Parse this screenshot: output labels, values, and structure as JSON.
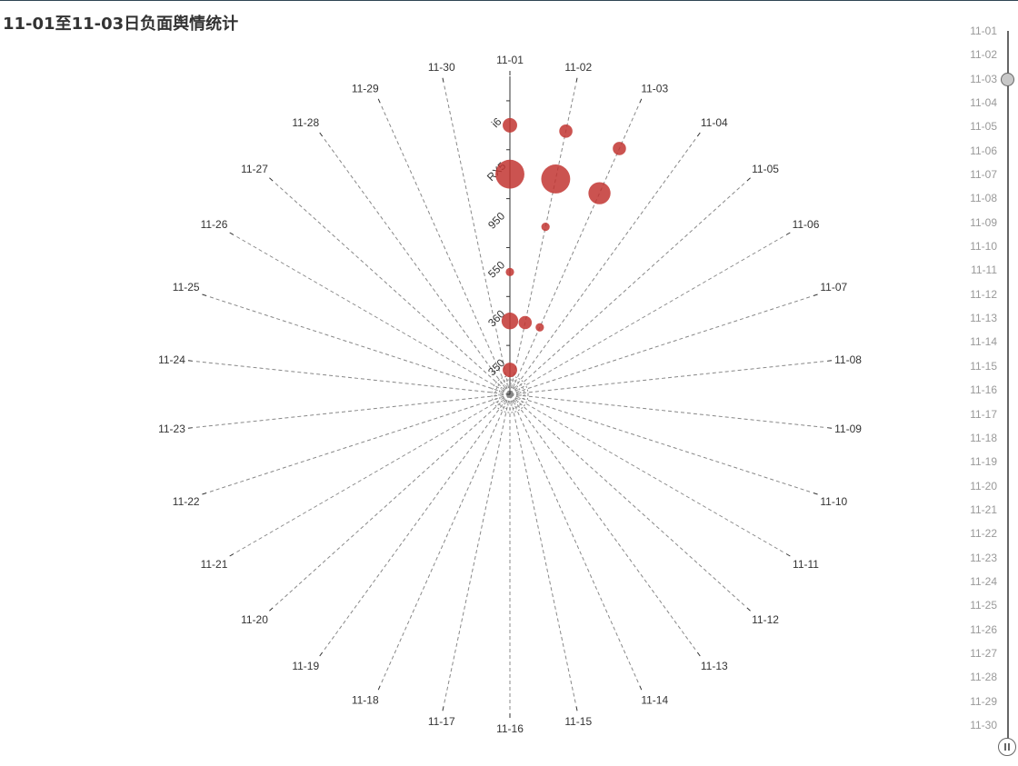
{
  "title": "11-01至11-03日负面舆情统计",
  "chart_data": {
    "type": "scatter",
    "coordinate": "polar",
    "angle_axis": {
      "categories": [
        "11-01",
        "11-02",
        "11-03",
        "11-04",
        "11-05",
        "11-06",
        "11-07",
        "11-08",
        "11-09",
        "11-10",
        "11-11",
        "11-12",
        "11-13",
        "11-14",
        "11-15",
        "11-16",
        "11-17",
        "11-18",
        "11-19",
        "11-20",
        "11-21",
        "11-22",
        "11-23",
        "11-24",
        "11-25",
        "11-26",
        "11-27",
        "11-28",
        "11-29",
        "11-30"
      ]
    },
    "radius_axis": {
      "type": "category",
      "categories": [
        "350",
        "360",
        "550",
        "950",
        "RX5",
        "i6"
      ]
    },
    "series": [
      {
        "color": "#c23531",
        "points": [
          {
            "day": "11-01",
            "model": "350",
            "value": 3
          },
          {
            "day": "11-01",
            "model": "360",
            "value": 4
          },
          {
            "day": "11-01",
            "model": "550",
            "value": 1
          },
          {
            "day": "11-01",
            "model": "RX5",
            "value": 12
          },
          {
            "day": "11-01",
            "model": "i6",
            "value": 3
          },
          {
            "day": "11-02",
            "model": "360",
            "value": 2.5
          },
          {
            "day": "11-02",
            "model": "950",
            "value": 1
          },
          {
            "day": "11-02",
            "model": "RX5",
            "value": 12
          },
          {
            "day": "11-02",
            "model": "i6",
            "value": 2.5
          },
          {
            "day": "11-03",
            "model": "360",
            "value": 1
          },
          {
            "day": "11-03",
            "model": "RX5",
            "value": 7
          },
          {
            "day": "11-03",
            "model": "i6",
            "value": 2.5
          }
        ]
      }
    ]
  },
  "timeline": {
    "labels": [
      "11-01",
      "11-02",
      "11-03",
      "11-04",
      "11-05",
      "11-06",
      "11-07",
      "11-08",
      "11-09",
      "11-10",
      "11-11",
      "11-12",
      "11-13",
      "11-14",
      "11-15",
      "11-16",
      "11-17",
      "11-18",
      "11-19",
      "11-20",
      "11-21",
      "11-22",
      "11-23",
      "11-24",
      "11-25",
      "11-26",
      "11-27",
      "11-28",
      "11-29",
      "11-30"
    ],
    "current_index": 2,
    "play_icon": "pause-icon"
  }
}
